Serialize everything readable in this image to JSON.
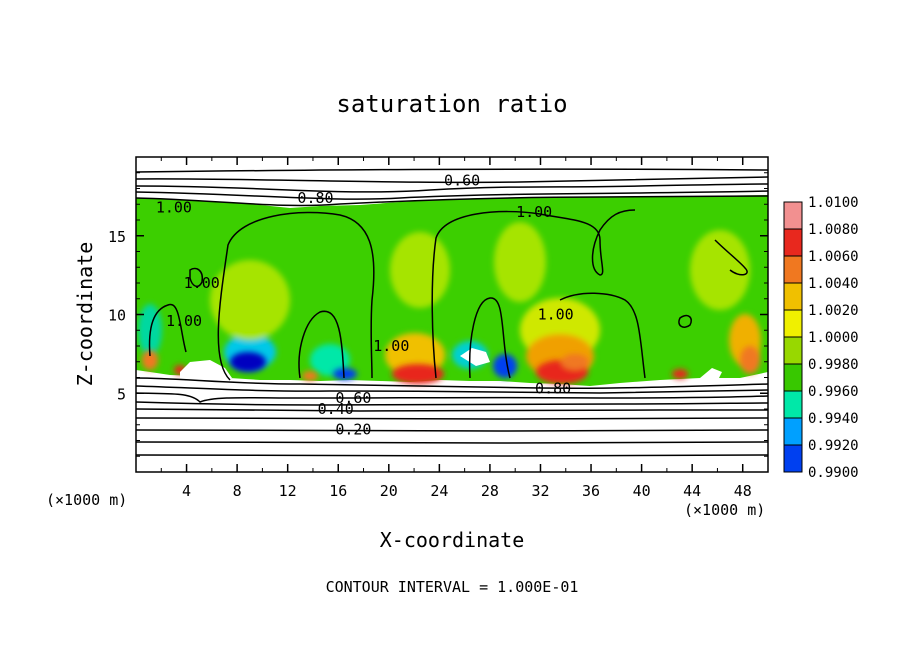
{
  "chart_data": {
    "type": "contour",
    "title": "saturation ratio",
    "xlabel": "X-coordinate",
    "ylabel": "Z-coordinate",
    "x_unit": "(×1000 m)",
    "y_unit": "(×1000 m)",
    "xlim": [
      0,
      50
    ],
    "ylim": [
      0,
      20
    ],
    "x_ticks": [
      4,
      8,
      12,
      16,
      20,
      24,
      28,
      32,
      36,
      40,
      44,
      48
    ],
    "y_ticks": [
      5,
      10,
      15
    ],
    "footer": "CONTOUR INTERVAL = 1.000E-01",
    "colorbar": {
      "levels": [
        "1.0100",
        "1.0080",
        "1.0060",
        "1.0040",
        "1.0020",
        "1.0000",
        "0.9980",
        "0.9960",
        "0.9940",
        "0.9920",
        "0.9900"
      ],
      "colors": [
        "#f29090",
        "#e8281e",
        "#f07820",
        "#f0c000",
        "#f0f000",
        "#98d800",
        "#38c800",
        "#00e8a8",
        "#00a0ff",
        "#0040f0",
        "#0000a0",
        "#300080"
      ]
    },
    "contour_labels": [
      {
        "text": "0.60",
        "x": 25.8,
        "y": 18.5
      },
      {
        "text": "0.80",
        "x": 14.2,
        "y": 17.4
      },
      {
        "text": "1.00",
        "x": 3.0,
        "y": 16.8
      },
      {
        "text": "1.00",
        "x": 31.5,
        "y": 16.5
      },
      {
        "text": "1.00",
        "x": 5.2,
        "y": 12.0
      },
      {
        "text": "1.00",
        "x": 3.8,
        "y": 9.6
      },
      {
        "text": "1.00",
        "x": 20.2,
        "y": 8.0
      },
      {
        "text": "1.00",
        "x": 33.2,
        "y": 10.0
      },
      {
        "text": "0.80",
        "x": 33.0,
        "y": 5.3
      },
      {
        "text": "0.60",
        "x": 17.2,
        "y": 4.7
      },
      {
        "text": "0.40",
        "x": 15.8,
        "y": 4.0
      },
      {
        "text": "0.20",
        "x": 17.2,
        "y": 2.7
      }
    ]
  }
}
